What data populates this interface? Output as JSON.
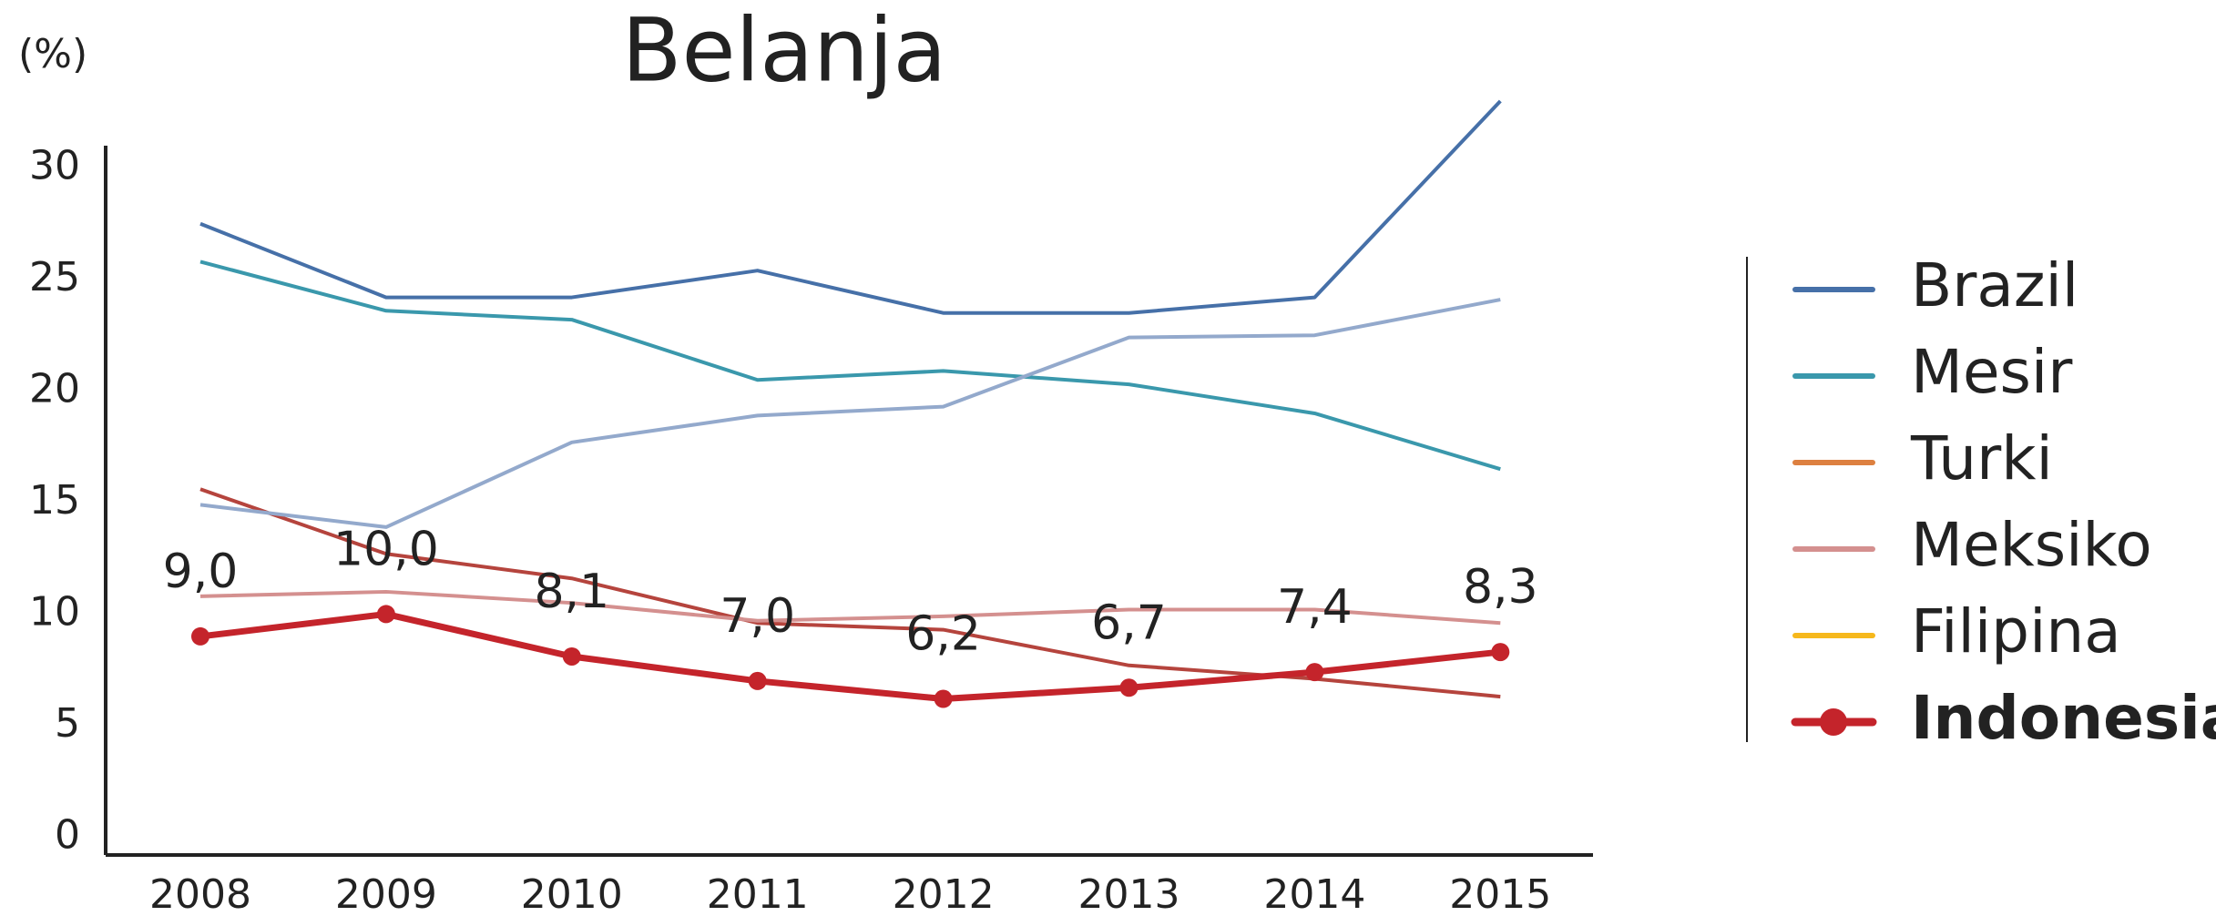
{
  "chart_data": {
    "type": "line",
    "title": "Belanja",
    "y_label": "(%)",
    "categories": [
      "2008",
      "2009",
      "2010",
      "2011",
      "2012",
      "2013",
      "2014",
      "2015"
    ],
    "ylim": [
      -0.8,
      31
    ],
    "yticks": [
      0,
      5,
      10,
      15,
      20,
      25,
      30
    ],
    "series": [
      {
        "name": "Brazil",
        "color": "#4670a8",
        "line_color": "#4670a8",
        "values": [
          27.5,
          24.2,
          24.2,
          25.4,
          23.5,
          23.5,
          24.2,
          33.0
        ]
      },
      {
        "name": "Mesir",
        "color": "#3a98ac",
        "line_color": "#3a98ac",
        "values": [
          25.8,
          23.6,
          23.2,
          20.5,
          20.9,
          20.3,
          19.0,
          16.5
        ]
      },
      {
        "name": "Turki",
        "color": "#dd8040",
        "line_color": "#b5443d",
        "values": [
          15.6,
          12.7,
          11.6,
          9.6,
          9.3,
          7.7,
          7.1,
          6.3
        ]
      },
      {
        "name": "Meksiko",
        "color": "#d4908f",
        "line_color": "#d4908f",
        "values": [
          10.8,
          11.0,
          10.5,
          9.7,
          9.9,
          10.2,
          10.2,
          9.6
        ]
      },
      {
        "name": "Filipina",
        "color": "#f6b81c",
        "line_color": "#93a9cc",
        "values": [
          14.9,
          13.9,
          17.7,
          18.9,
          19.3,
          22.4,
          22.5,
          24.1
        ]
      },
      {
        "name": "Indonesia",
        "color": "#c4242b",
        "line_color": "#c4242b",
        "markers": true,
        "highlight": true,
        "values": [
          9.0,
          10.0,
          8.1,
          7.0,
          6.2,
          6.7,
          7.4,
          8.3
        ],
        "value_labels": [
          "9,0",
          "10,0",
          "8,1",
          "7,0",
          "6,2",
          "6,7",
          "7,4",
          "8,3"
        ]
      }
    ]
  }
}
